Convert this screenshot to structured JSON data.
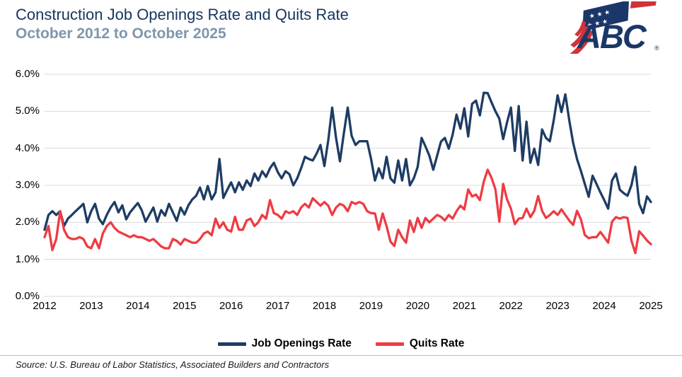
{
  "header": {
    "title": "Construction Job Openings Rate and Quits Rate",
    "subtitle": "October 2012 to October 2025",
    "logo_text": "ABC",
    "logo_reg": "®"
  },
  "colors": {
    "title": "#17365d",
    "subtitle": "#7e96ac",
    "grid": "#d9d9d9",
    "axis_text": "#000000",
    "openings_line": "#1e3c64",
    "quits_line": "#ee3b43",
    "logo_navy": "#1b3668",
    "logo_red": "#cf3339"
  },
  "chart_data": {
    "type": "line",
    "title": "Construction Job Openings Rate and Quits Rate",
    "period": "October 2012 to October 2025",
    "x_frequency": "monthly",
    "x_start": "2012-10",
    "x_end": "2025-10",
    "x_tick_labels": [
      "2012",
      "2013",
      "2014",
      "2015",
      "2016",
      "2017",
      "2018",
      "2019",
      "2020",
      "2021",
      "2022",
      "2023",
      "2024",
      "2025"
    ],
    "x_tick_every_n_points": 12,
    "y_tick_labels": [
      "0.0%",
      "1.0%",
      "2.0%",
      "3.0%",
      "4.0%",
      "5.0%",
      "6.0%"
    ],
    "ylim": [
      0,
      6
    ],
    "grid": "horizontal",
    "legend_position": "bottom",
    "series": [
      {
        "name": "Job Openings Rate",
        "color": "#1e3c64",
        "unit": "percent",
        "values": [
          1.8,
          2.2,
          2.3,
          2.2,
          2.3,
          1.9,
          2.1,
          2.2,
          2.3,
          2.4,
          2.5,
          2.0,
          2.3,
          2.5,
          2.1,
          1.95,
          2.2,
          2.4,
          2.55,
          2.27,
          2.46,
          2.08,
          2.27,
          2.4,
          2.52,
          2.33,
          2.02,
          2.21,
          2.4,
          2.02,
          2.33,
          2.18,
          2.5,
          2.27,
          2.04,
          2.4,
          2.21,
          2.46,
          2.62,
          2.72,
          2.94,
          2.62,
          2.98,
          2.62,
          2.81,
          3.71,
          2.66,
          2.88,
          3.08,
          2.81,
          3.08,
          2.88,
          3.13,
          2.98,
          3.32,
          3.13,
          3.38,
          3.23,
          3.46,
          3.61,
          3.36,
          3.19,
          3.38,
          3.3,
          3.0,
          3.19,
          3.46,
          3.77,
          3.71,
          3.67,
          3.86,
          4.09,
          3.52,
          4.22,
          5.1,
          4.28,
          3.65,
          4.4,
          5.1,
          4.34,
          4.09,
          4.19,
          4.19,
          4.19,
          3.71,
          3.13,
          3.46,
          3.19,
          3.77,
          3.19,
          3.07,
          3.67,
          3.13,
          3.71,
          3.0,
          3.19,
          3.5,
          4.28,
          4.05,
          3.8,
          3.42,
          3.8,
          4.18,
          4.28,
          3.99,
          4.37,
          4.91,
          4.53,
          5.08,
          4.32,
          5.2,
          5.29,
          4.89,
          5.5,
          5.49,
          5.24,
          5.0,
          4.8,
          4.25,
          4.7,
          5.1,
          3.93,
          5.14,
          3.67,
          4.72,
          3.61,
          3.99,
          3.55,
          4.51,
          4.28,
          4.19,
          4.76,
          5.43,
          4.98,
          5.46,
          4.76,
          4.15,
          3.71,
          3.39,
          3.04,
          2.69,
          3.26,
          3.04,
          2.81,
          2.6,
          2.37,
          3.13,
          3.32,
          2.88,
          2.79,
          2.72,
          3.0,
          3.5,
          2.5,
          2.25,
          2.7,
          2.55
        ]
      },
      {
        "name": "Quits Rate",
        "color": "#ee3b43",
        "unit": "percent",
        "values": [
          1.6,
          1.9,
          1.25,
          1.55,
          2.3,
          1.8,
          1.6,
          1.55,
          1.55,
          1.6,
          1.55,
          1.35,
          1.3,
          1.55,
          1.3,
          1.7,
          1.9,
          2.0,
          1.85,
          1.75,
          1.7,
          1.65,
          1.6,
          1.65,
          1.6,
          1.6,
          1.55,
          1.5,
          1.55,
          1.45,
          1.35,
          1.3,
          1.3,
          1.55,
          1.5,
          1.4,
          1.55,
          1.5,
          1.45,
          1.45,
          1.55,
          1.7,
          1.75,
          1.65,
          2.1,
          1.85,
          2.0,
          1.8,
          1.75,
          2.15,
          1.8,
          1.8,
          2.05,
          2.1,
          1.9,
          2.0,
          2.2,
          2.1,
          2.6,
          2.25,
          2.2,
          2.1,
          2.3,
          2.25,
          2.3,
          2.2,
          2.4,
          2.5,
          2.4,
          2.65,
          2.55,
          2.45,
          2.55,
          2.45,
          2.2,
          2.4,
          2.5,
          2.45,
          2.3,
          2.55,
          2.5,
          2.55,
          2.5,
          2.3,
          2.25,
          2.24,
          1.8,
          2.24,
          1.9,
          1.48,
          1.36,
          1.8,
          1.6,
          1.45,
          2.05,
          1.74,
          2.12,
          1.85,
          2.12,
          2.0,
          2.1,
          2.2,
          2.15,
          2.05,
          2.2,
          2.1,
          2.3,
          2.45,
          2.35,
          2.89,
          2.7,
          2.75,
          2.6,
          3.1,
          3.42,
          3.2,
          2.89,
          2.02,
          3.04,
          2.62,
          2.37,
          1.95,
          2.1,
          2.12,
          2.37,
          2.14,
          2.31,
          2.71,
          2.31,
          2.12,
          2.2,
          2.3,
          2.2,
          2.35,
          2.2,
          2.05,
          1.93,
          2.31,
          2.08,
          1.66,
          1.57,
          1.6,
          1.6,
          1.74,
          1.6,
          1.45,
          2.02,
          2.14,
          2.1,
          2.14,
          2.12,
          1.51,
          1.17,
          1.76,
          1.64,
          1.51,
          1.41
        ]
      }
    ]
  },
  "footer": {
    "source": "Source: U.S. Bureau of Labor Statistics, Associated Builders and Contractors"
  }
}
